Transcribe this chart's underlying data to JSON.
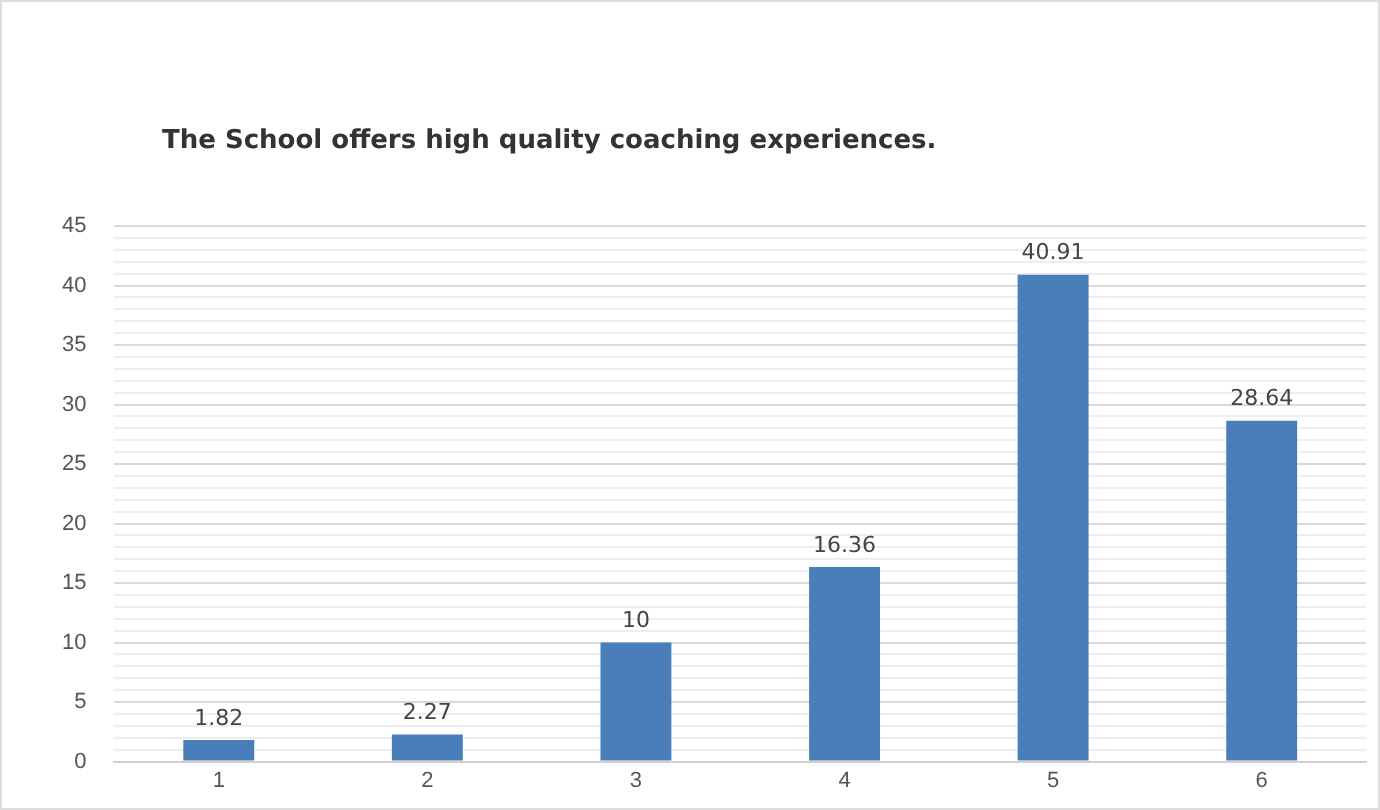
{
  "chart_data": {
    "type": "bar",
    "title": "The School offers high quality coaching experiences.",
    "categories": [
      "1",
      "2",
      "3",
      "4",
      "5",
      "6"
    ],
    "values": [
      1.82,
      2.27,
      10,
      16.36,
      40.91,
      28.64
    ],
    "color": "#4a7ebb",
    "ylim": [
      0,
      45
    ],
    "yticks": [
      0,
      {
        "value": 1,
        "label": null
      },
      {
        "value": 2,
        "label": null
      },
      {
        "value": 3,
        "label": null
      },
      {
        "value": 4,
        "label": null
      },
      5,
      {
        "value": 6,
        "label": null
      },
      {
        "value": 7,
        "label": null
      },
      {
        "value": 8,
        "label": null
      },
      {
        "value": 9,
        "label": null
      },
      10,
      {
        "value": 11,
        "label": null
      },
      {
        "value": 12,
        "label": null
      },
      {
        "value": 13,
        "label": null
      },
      {
        "value": 14,
        "label": null
      },
      15,
      {
        "value": 16,
        "label": null
      },
      {
        "value": 17,
        "label": null
      },
      {
        "value": 18,
        "label": null
      },
      {
        "value": 19,
        "label": null
      },
      20,
      {
        "value": 21,
        "label": null
      },
      {
        "value": 22,
        "label": null
      },
      {
        "value": 23,
        "label": null
      },
      {
        "value": 24,
        "label": null
      },
      25,
      {
        "value": 26,
        "label": null
      },
      {
        "value": 27,
        "label": null
      },
      {
        "value": 28,
        "label": null
      },
      {
        "value": 29,
        "label": null
      },
      30,
      {
        "value": 31,
        "label": null
      },
      {
        "value": 32,
        "label": null
      },
      {
        "value": 33,
        "label": null
      },
      {
        "value": 34,
        "label": null
      },
      35,
      {
        "value": 36,
        "label": null
      },
      {
        "value": 37,
        "label": null
      },
      {
        "value": 38,
        "label": null
      },
      {
        "value": 39,
        "label": null
      },
      40,
      {
        "value": 41,
        "label": null
      },
      {
        "value": 42,
        "label": null
      },
      {
        "value": 43,
        "label": null
      },
      {
        "value": 44,
        "label": null
      },
      45
    ],
    "grid": "y",
    "data_labels": true
  }
}
